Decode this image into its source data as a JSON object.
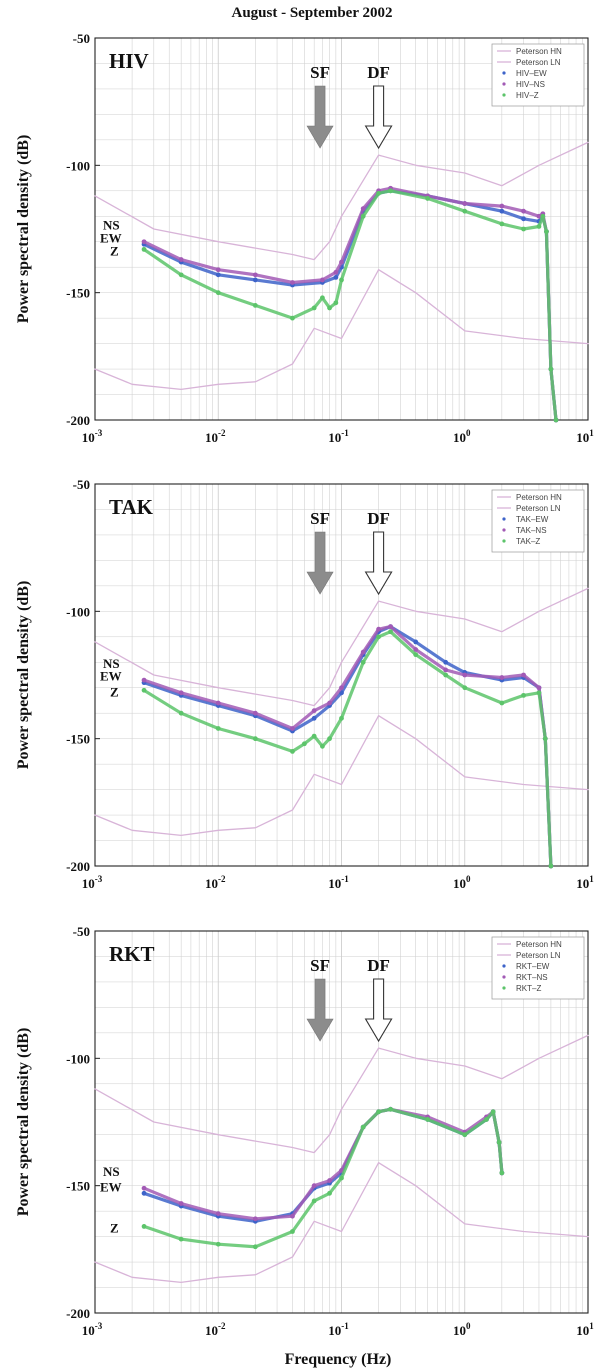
{
  "title": "August - September 2002",
  "xlabel": "Frequency (Hz)",
  "ylabel": "Power spectral density (dB)",
  "x_tick_labels": [
    {
      "base": "10",
      "exp": "-3"
    },
    {
      "base": "10",
      "exp": "-2"
    },
    {
      "base": "10",
      "exp": "-1"
    },
    {
      "base": "10",
      "exp": "0"
    },
    {
      "base": "10",
      "exp": "1"
    }
  ],
  "y_tick_labels": [
    "-50",
    "-100",
    "-150",
    "-200"
  ],
  "arrows": {
    "sf": "SF",
    "df": "DF"
  },
  "colors": {
    "peterson": "#d8b4d8",
    "ew": "#3d63c9",
    "ns": "#a25ab5",
    "z": "#5cc46a",
    "sf_arrow": "#8c8c8c",
    "grid": "#cfcfcf"
  },
  "chart_data": [
    {
      "type": "line",
      "panel_label": "HIV",
      "component_labels": [
        "NS",
        "EW",
        "Z"
      ],
      "legend": [
        "Peterson HN",
        "Peterson LN",
        "HIV–EW",
        "HIV–NS",
        "HIV–Z"
      ],
      "xscale": "log",
      "xlim": [
        0.001,
        10
      ],
      "ylim": [
        -200,
        -50
      ],
      "grid": true,
      "legend_position": "top-right",
      "series": [
        {
          "name": "Peterson HN",
          "x": [
            0.001,
            0.003,
            0.01,
            0.04,
            0.06,
            0.08,
            0.1,
            0.2,
            0.4,
            1,
            2,
            4,
            10
          ],
          "y": [
            -112,
            -125,
            -130,
            -135,
            -137,
            -130,
            -120,
            -96,
            -100,
            -103,
            -108,
            -100,
            -91
          ]
        },
        {
          "name": "Peterson LN",
          "x": [
            0.001,
            0.002,
            0.005,
            0.01,
            0.02,
            0.04,
            0.06,
            0.1,
            0.2,
            0.4,
            1,
            3,
            10
          ],
          "y": [
            -180,
            -186,
            -188,
            -186,
            -185,
            -178,
            -164,
            -168,
            -141,
            -150,
            -165,
            -168,
            -170
          ]
        },
        {
          "name": "HIV–EW",
          "x": [
            0.0025,
            0.005,
            0.01,
            0.02,
            0.04,
            0.07,
            0.09,
            0.1,
            0.15,
            0.2,
            0.25,
            0.5,
            1,
            2,
            3,
            4,
            4.3,
            4.6,
            5,
            5.5
          ],
          "y": [
            -131,
            -138,
            -143,
            -145,
            -147,
            -146,
            -144,
            -140,
            -118,
            -111,
            -110,
            -112,
            -115,
            -118,
            -121,
            -122,
            -120,
            -126,
            -180,
            -200
          ]
        },
        {
          "name": "HIV–NS",
          "x": [
            0.0025,
            0.005,
            0.01,
            0.02,
            0.04,
            0.07,
            0.09,
            0.1,
            0.15,
            0.2,
            0.25,
            0.5,
            1,
            2,
            3,
            4,
            4.3,
            4.6,
            5,
            5.5
          ],
          "y": [
            -130,
            -137,
            -141,
            -143,
            -146,
            -145,
            -142,
            -138,
            -117,
            -110,
            -109,
            -112,
            -115,
            -116,
            -118,
            -120,
            -119,
            -126,
            -180,
            -200
          ]
        },
        {
          "name": "HIV–Z",
          "x": [
            0.0025,
            0.005,
            0.01,
            0.02,
            0.04,
            0.06,
            0.07,
            0.08,
            0.09,
            0.1,
            0.15,
            0.2,
            0.25,
            0.5,
            1,
            2,
            3,
            4,
            4.3,
            4.6,
            5,
            5.5
          ],
          "y": [
            -133,
            -143,
            -150,
            -155,
            -160,
            -156,
            -152,
            -156,
            -154,
            -145,
            -120,
            -111,
            -110,
            -113,
            -118,
            -123,
            -125,
            -124,
            -120,
            -126,
            -180,
            -200
          ]
        }
      ]
    },
    {
      "type": "line",
      "panel_label": "TAK",
      "component_labels": [
        "NS",
        "EW",
        "Z"
      ],
      "legend": [
        "Peterson HN",
        "Peterson LN",
        "TAK–EW",
        "TAK–NS",
        "TAK–Z"
      ],
      "xscale": "log",
      "xlim": [
        0.001,
        10
      ],
      "ylim": [
        -200,
        -50
      ],
      "grid": true,
      "legend_position": "top-right",
      "series": [
        {
          "name": "Peterson HN",
          "x": [
            0.001,
            0.003,
            0.01,
            0.04,
            0.06,
            0.08,
            0.1,
            0.2,
            0.4,
            1,
            2,
            4,
            10
          ],
          "y": [
            -112,
            -125,
            -130,
            -135,
            -137,
            -130,
            -120,
            -96,
            -100,
            -103,
            -108,
            -100,
            -91
          ]
        },
        {
          "name": "Peterson LN",
          "x": [
            0.001,
            0.002,
            0.005,
            0.01,
            0.02,
            0.04,
            0.06,
            0.1,
            0.2,
            0.4,
            1,
            3,
            10
          ],
          "y": [
            -180,
            -186,
            -188,
            -186,
            -185,
            -178,
            -164,
            -168,
            -141,
            -150,
            -165,
            -168,
            -170
          ]
        },
        {
          "name": "TAK–EW",
          "x": [
            0.0025,
            0.005,
            0.01,
            0.02,
            0.04,
            0.06,
            0.08,
            0.1,
            0.15,
            0.2,
            0.25,
            0.4,
            0.7,
            1,
            2,
            3,
            4,
            4.5,
            5
          ],
          "y": [
            -128,
            -133,
            -137,
            -141,
            -147,
            -142,
            -137,
            -132,
            -117,
            -108,
            -106,
            -112,
            -120,
            -124,
            -127,
            -126,
            -130,
            -150,
            -200
          ]
        },
        {
          "name": "TAK–NS",
          "x": [
            0.0025,
            0.005,
            0.01,
            0.02,
            0.04,
            0.06,
            0.08,
            0.1,
            0.15,
            0.2,
            0.25,
            0.4,
            0.7,
            1,
            2,
            3,
            4,
            4.5,
            5
          ],
          "y": [
            -127,
            -132,
            -136,
            -140,
            -146,
            -139,
            -136,
            -130,
            -116,
            -107,
            -106,
            -115,
            -123,
            -125,
            -126,
            -125,
            -130,
            -150,
            -200
          ]
        },
        {
          "name": "TAK–Z",
          "x": [
            0.0025,
            0.005,
            0.01,
            0.02,
            0.04,
            0.05,
            0.06,
            0.07,
            0.08,
            0.1,
            0.15,
            0.2,
            0.25,
            0.4,
            0.7,
            1,
            2,
            3,
            4,
            4.5,
            5
          ],
          "y": [
            -131,
            -140,
            -146,
            -150,
            -155,
            -152,
            -149,
            -153,
            -150,
            -142,
            -120,
            -110,
            -108,
            -117,
            -125,
            -130,
            -136,
            -133,
            -132,
            -150,
            -200
          ]
        }
      ]
    },
    {
      "type": "line",
      "panel_label": "RKT",
      "component_labels": [
        "NS",
        "EW",
        "Z"
      ],
      "legend": [
        "Peterson HN",
        "Peterson LN",
        "RKT–EW",
        "RKT–NS",
        "RKT–Z"
      ],
      "xscale": "log",
      "xlim": [
        0.001,
        10
      ],
      "ylim": [
        -200,
        -50
      ],
      "grid": true,
      "legend_position": "top-right",
      "series": [
        {
          "name": "Peterson HN",
          "x": [
            0.001,
            0.003,
            0.01,
            0.04,
            0.06,
            0.08,
            0.1,
            0.2,
            0.4,
            1,
            2,
            4,
            10
          ],
          "y": [
            -112,
            -125,
            -130,
            -135,
            -137,
            -130,
            -120,
            -96,
            -100,
            -103,
            -108,
            -100,
            -91
          ]
        },
        {
          "name": "Peterson LN",
          "x": [
            0.001,
            0.002,
            0.005,
            0.01,
            0.02,
            0.04,
            0.06,
            0.1,
            0.2,
            0.4,
            1,
            3,
            10
          ],
          "y": [
            -180,
            -186,
            -188,
            -186,
            -185,
            -178,
            -164,
            -168,
            -141,
            -150,
            -165,
            -168,
            -170
          ]
        },
        {
          "name": "RKT–EW",
          "x": [
            0.0025,
            0.005,
            0.01,
            0.02,
            0.04,
            0.06,
            0.08,
            0.1,
            0.15,
            0.2,
            0.25,
            0.5,
            1,
            1.5,
            1.7,
            1.9,
            2
          ],
          "y": [
            -153,
            -158,
            -162,
            -164,
            -161,
            -151,
            -149,
            -145,
            -127,
            -121,
            -120,
            -124,
            -130,
            -124,
            -121,
            -133,
            -145
          ]
        },
        {
          "name": "RKT–NS",
          "x": [
            0.0025,
            0.005,
            0.01,
            0.02,
            0.04,
            0.06,
            0.08,
            0.1,
            0.15,
            0.2,
            0.25,
            0.5,
            1,
            1.5,
            1.7,
            1.9,
            2
          ],
          "y": [
            -151,
            -157,
            -161,
            -163,
            -162,
            -150,
            -148,
            -144,
            -127,
            -121,
            -120,
            -123,
            -129,
            -123,
            -121,
            -133,
            -145
          ]
        },
        {
          "name": "RKT–Z",
          "x": [
            0.0025,
            0.005,
            0.01,
            0.02,
            0.04,
            0.06,
            0.08,
            0.1,
            0.15,
            0.2,
            0.25,
            0.5,
            1,
            1.5,
            1.7,
            1.9,
            2
          ],
          "y": [
            -166,
            -171,
            -173,
            -174,
            -168,
            -156,
            -153,
            -147,
            -127,
            -121,
            -120,
            -124,
            -130,
            -124,
            -121,
            -133,
            -145
          ]
        }
      ]
    }
  ]
}
